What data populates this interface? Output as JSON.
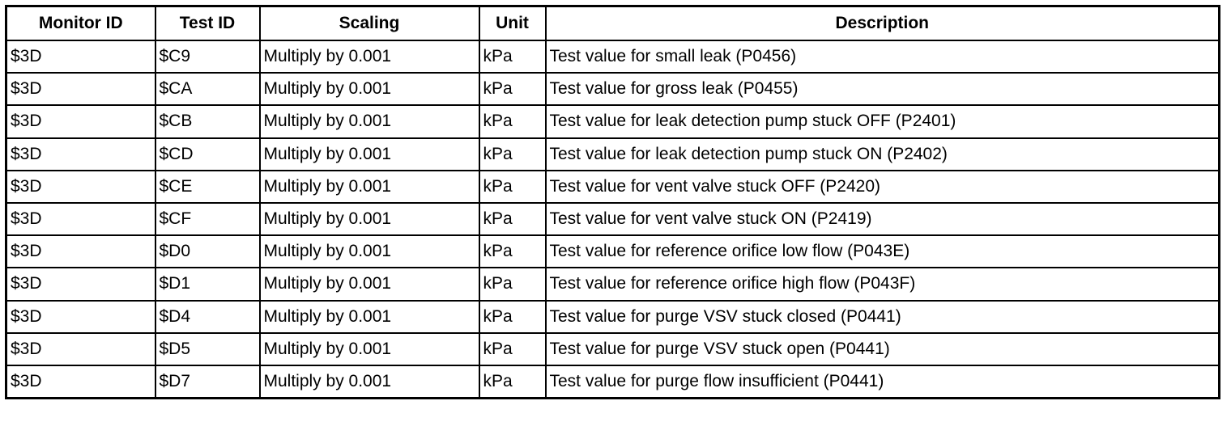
{
  "table": {
    "header": [
      "Monitor ID",
      "Test ID",
      "Scaling",
      "Unit",
      "Description"
    ],
    "rows": [
      [
        "$3D",
        "$C9",
        "Multiply by 0.001",
        "kPa",
        "Test value for small leak (P0456)"
      ],
      [
        "$3D",
        "$CA",
        "Multiply by 0.001",
        "kPa",
        "Test value for gross leak (P0455)"
      ],
      [
        "$3D",
        "$CB",
        "Multiply by 0.001",
        "kPa",
        "Test value for leak detection pump stuck OFF (P2401)"
      ],
      [
        "$3D",
        "$CD",
        "Multiply by 0.001",
        "kPa",
        "Test value for leak detection pump stuck ON (P2402)"
      ],
      [
        "$3D",
        "$CE",
        "Multiply by 0.001",
        "kPa",
        "Test value for vent valve stuck OFF (P2420)"
      ],
      [
        "$3D",
        "$CF",
        "Multiply by 0.001",
        "kPa",
        "Test value for vent valve stuck ON (P2419)"
      ],
      [
        "$3D",
        "$D0",
        "Multiply by 0.001",
        "kPa",
        "Test value for reference orifice low flow (P043E)"
      ],
      [
        "$3D",
        "$D1",
        "Multiply by 0.001",
        "kPa",
        "Test value for reference orifice high flow (P043F)"
      ],
      [
        "$3D",
        "$D4",
        "Multiply by 0.001",
        "kPa",
        "Test value for purge VSV stuck closed (P0441)"
      ],
      [
        "$3D",
        "$D5",
        "Multiply by 0.001",
        "kPa",
        "Test value for purge VSV stuck open (P0441)"
      ],
      [
        "$3D",
        "$D7",
        "Multiply by 0.001",
        "kPa",
        "Test value for purge flow insufficient (P0441)"
      ]
    ]
  }
}
